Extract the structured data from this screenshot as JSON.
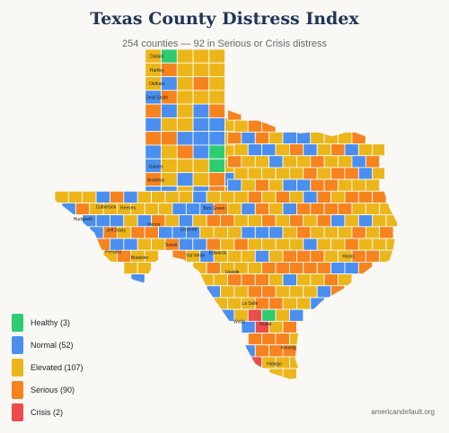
{
  "title": "Texas County Distress Index",
  "subtitle": "254 counties — 92 in Serious or Crisis distress",
  "footer": "americandefault.org",
  "colors": {
    "healthy": "#2ecc71",
    "normal": "#4a8ff0",
    "elevated": "#ecb61b",
    "serious": "#f7831f",
    "crisis": "#ee4b4b",
    "border": "#ffffff",
    "background": "#faf8f5"
  },
  "legend": [
    {
      "key": "healthy",
      "label": "Healthy (3)"
    },
    {
      "key": "normal",
      "label": "Normal (52)"
    },
    {
      "key": "elevated",
      "label": "Elevated (107)"
    },
    {
      "key": "serious",
      "label": "Serious (90)"
    },
    {
      "key": "crisis",
      "label": "Crisis (2)"
    }
  ],
  "county_labels": [
    {
      "name": "Dallam",
      "lon": -102.6,
      "lat": 36.28
    },
    {
      "name": "Hartley",
      "lon": -102.6,
      "lat": 35.84
    },
    {
      "name": "Oldham",
      "lon": -102.6,
      "lat": 35.4
    },
    {
      "name": "Deaf Smith",
      "lon": -102.6,
      "lat": 34.96
    },
    {
      "name": "Gaines",
      "lon": -102.64,
      "lat": 32.74
    },
    {
      "name": "Andrews",
      "lon": -102.64,
      "lat": 32.31
    },
    {
      "name": "Culberson",
      "lon": -104.52,
      "lat": 31.45
    },
    {
      "name": "Reeves",
      "lon": -103.69,
      "lat": 31.42
    },
    {
      "name": "Tom Green",
      "lon": -100.46,
      "lat": 31.4
    },
    {
      "name": "Hudspeth",
      "lon": -105.39,
      "lat": 31.05
    },
    {
      "name": "Jeff Davis",
      "lon": -104.15,
      "lat": 30.7
    },
    {
      "name": "Pecos",
      "lon": -102.72,
      "lat": 30.88
    },
    {
      "name": "Crockett",
      "lon": -101.41,
      "lat": 30.72
    },
    {
      "name": "Presidio",
      "lon": -104.24,
      "lat": 30.0
    },
    {
      "name": "Terrell",
      "lon": -102.08,
      "lat": 30.22
    },
    {
      "name": "Edwards",
      "lon": -100.31,
      "lat": 29.98
    },
    {
      "name": "Val Verde",
      "lon": -101.15,
      "lat": 29.89
    },
    {
      "name": "Brewster",
      "lon": -103.25,
      "lat": 29.81
    },
    {
      "name": "Uvalde",
      "lon": -99.76,
      "lat": 29.36
    },
    {
      "name": "Harris",
      "lon": -95.39,
      "lat": 29.86
    },
    {
      "name": "La Salle",
      "lon": -99.1,
      "lat": 28.34
    },
    {
      "name": "Webb",
      "lon": -99.5,
      "lat": 27.76
    },
    {
      "name": "Duval",
      "lon": -98.51,
      "lat": 27.68
    },
    {
      "name": "Kenedy",
      "lon": -97.64,
      "lat": 26.92
    },
    {
      "name": "Hidalgo",
      "lon": -98.18,
      "lat": 26.4
    }
  ]
}
